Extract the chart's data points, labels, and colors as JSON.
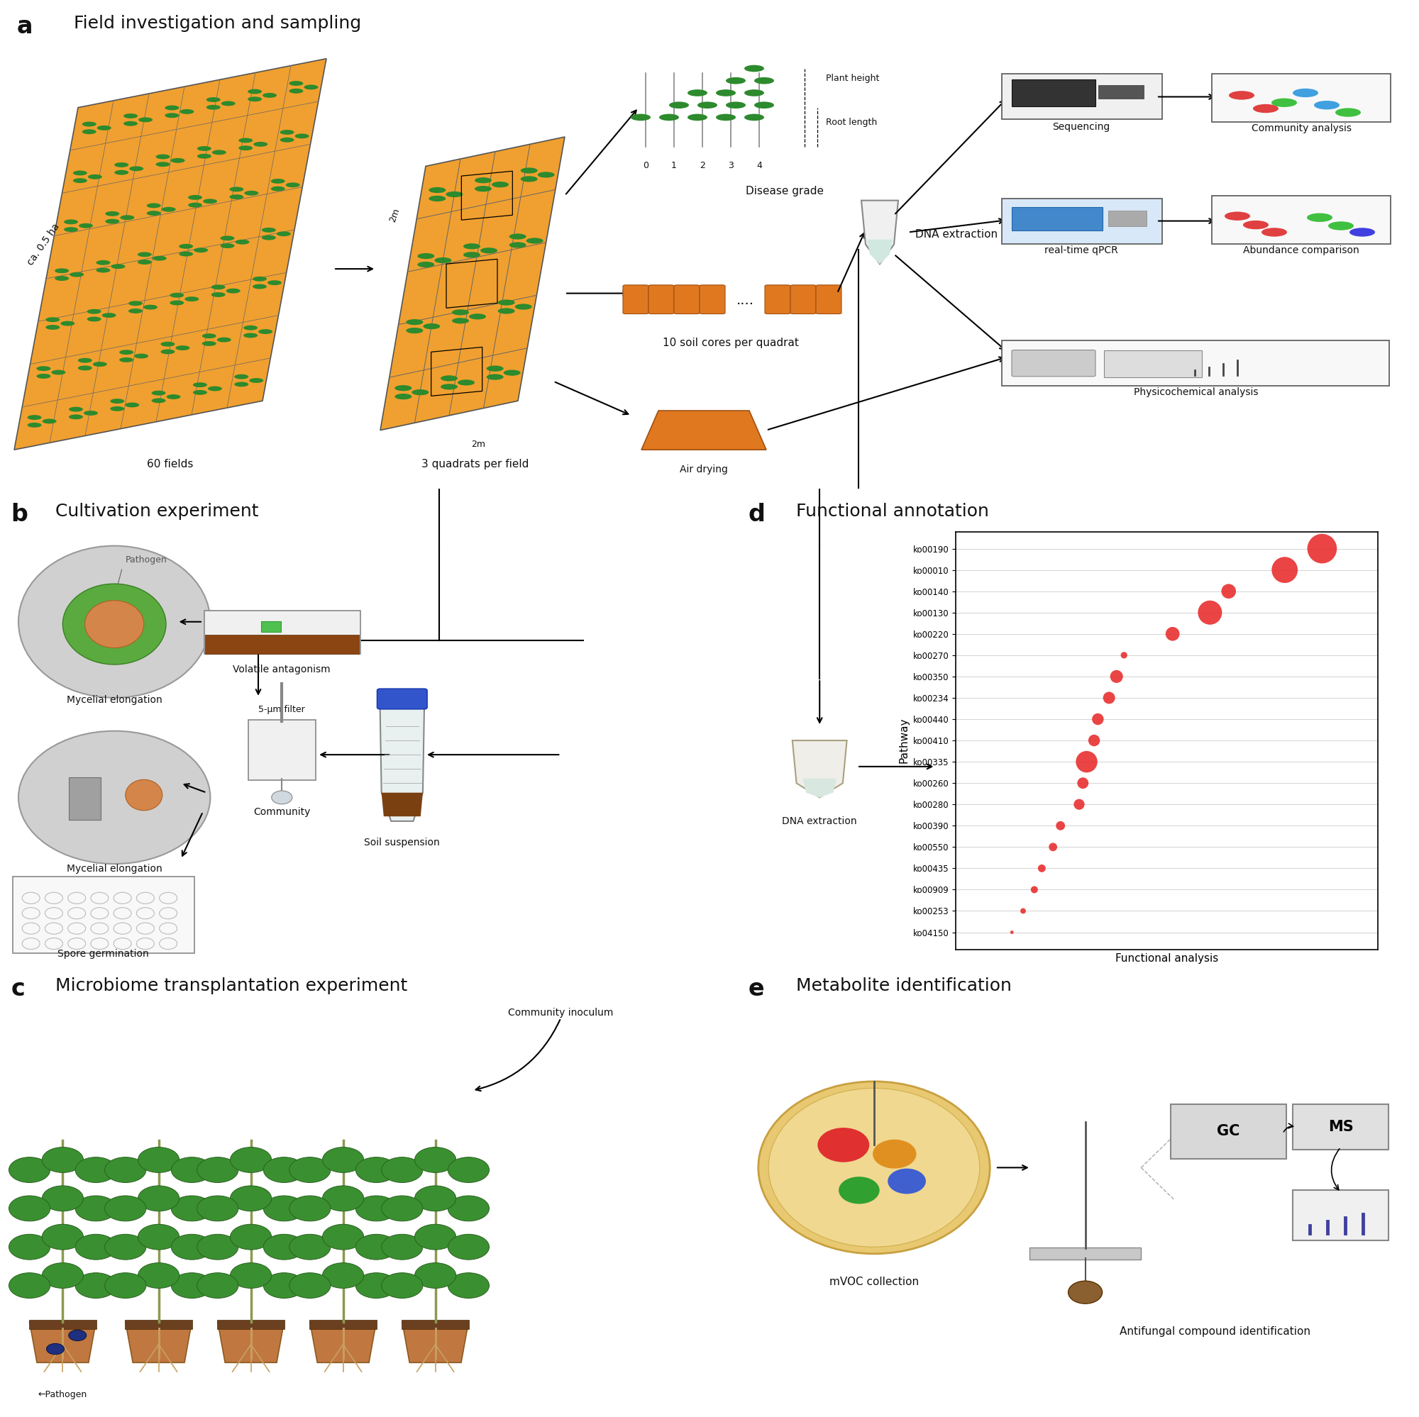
{
  "panel_labels": [
    "a",
    "b",
    "c",
    "d",
    "e"
  ],
  "panel_titles": [
    "Field investigation and sampling",
    "Cultivation experiment",
    "Microbiome transplantation experiment",
    "Functional annotation",
    "Metabolite identification"
  ],
  "dot_plot": {
    "pathways": [
      "ko00190",
      "ko00010",
      "ko00140",
      "ko00130",
      "ko00220",
      "ko00270",
      "ko00350",
      "ko00234",
      "ko00440",
      "ko00410",
      "ko00335",
      "ko00260",
      "ko00280",
      "ko00390",
      "ko00550",
      "ko00435",
      "ko00909",
      "ko00253",
      "ko04150"
    ],
    "x_values": [
      9.5,
      8.5,
      7.0,
      6.5,
      5.5,
      4.2,
      4.0,
      3.8,
      3.5,
      3.4,
      3.2,
      3.1,
      3.0,
      2.5,
      2.3,
      2.0,
      1.8,
      1.5,
      1.2
    ],
    "sizes": [
      900,
      700,
      220,
      600,
      200,
      45,
      170,
      150,
      140,
      140,
      480,
      130,
      120,
      85,
      72,
      62,
      52,
      32,
      12
    ],
    "dot_color": "#e83030",
    "xlabel": "Functional analysis",
    "ylabel": "Pathway",
    "grid_color": "#cccccc"
  },
  "field_color": "#f0a030",
  "field_edge": "#555555",
  "plant_color": "#2d8a2d",
  "background_color": "#ffffff",
  "arrow_color": "#222222",
  "text_color": "#111111",
  "gray_circle": "#d0d0d0",
  "green_colony": "#5aaa40",
  "orange_colony": "#d4854a",
  "soil_brown": "#7a4010",
  "pot_color": "#c07840",
  "stem_color": "#8a9a50"
}
